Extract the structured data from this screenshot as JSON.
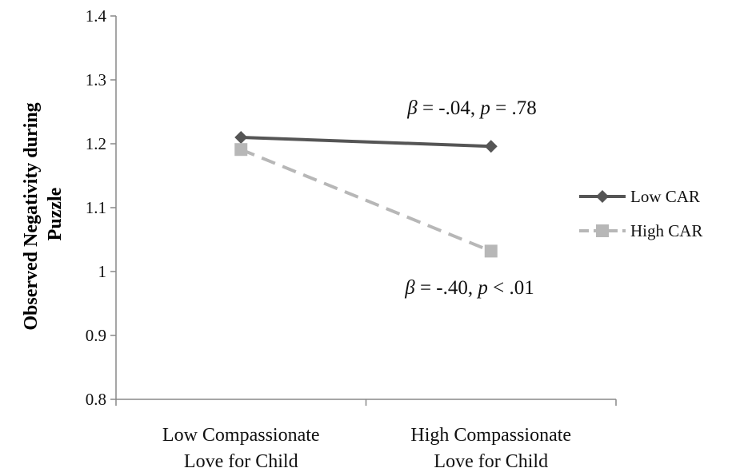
{
  "chart_data": {
    "type": "line",
    "categories": [
      "Low Compassionate Love for Child",
      "High Compassionate Love for Child"
    ],
    "category_lines": [
      [
        "Low Compassionate",
        "Love for Child"
      ],
      [
        "High Compassionate",
        "Love for Child"
      ]
    ],
    "ylabel_lines": [
      "Observed Negativity during",
      "Puzzle"
    ],
    "xlabel": "",
    "title": "",
    "ylim": [
      0.8,
      1.4
    ],
    "yticks": [
      0.8,
      0.9,
      1.0,
      1.1,
      1.2,
      1.3,
      1.4
    ],
    "ytick_labels": [
      "0.8",
      "0.9",
      "1",
      "1.1",
      "1.2",
      "1.3",
      "1.4"
    ],
    "grid": false,
    "legend_position": "right",
    "series": [
      {
        "name": "Low CAR",
        "values": [
          1.21,
          1.196
        ],
        "color": "#555555",
        "marker": "diamond",
        "dash": "solid"
      },
      {
        "name": "High CAR",
        "values": [
          1.191,
          1.032
        ],
        "color": "#b7b7b7",
        "marker": "square",
        "dash": "dashed"
      }
    ],
    "annotations": [
      {
        "series": "Low CAR",
        "beta_sym": "β",
        "beta_val": " = -.04, ",
        "p_sym": "p",
        "p_val": " = .78"
      },
      {
        "series": "High CAR",
        "beta_sym": "β",
        "beta_val": " = -.40, ",
        "p_sym": "p",
        "p_val": " < .01"
      }
    ]
  }
}
